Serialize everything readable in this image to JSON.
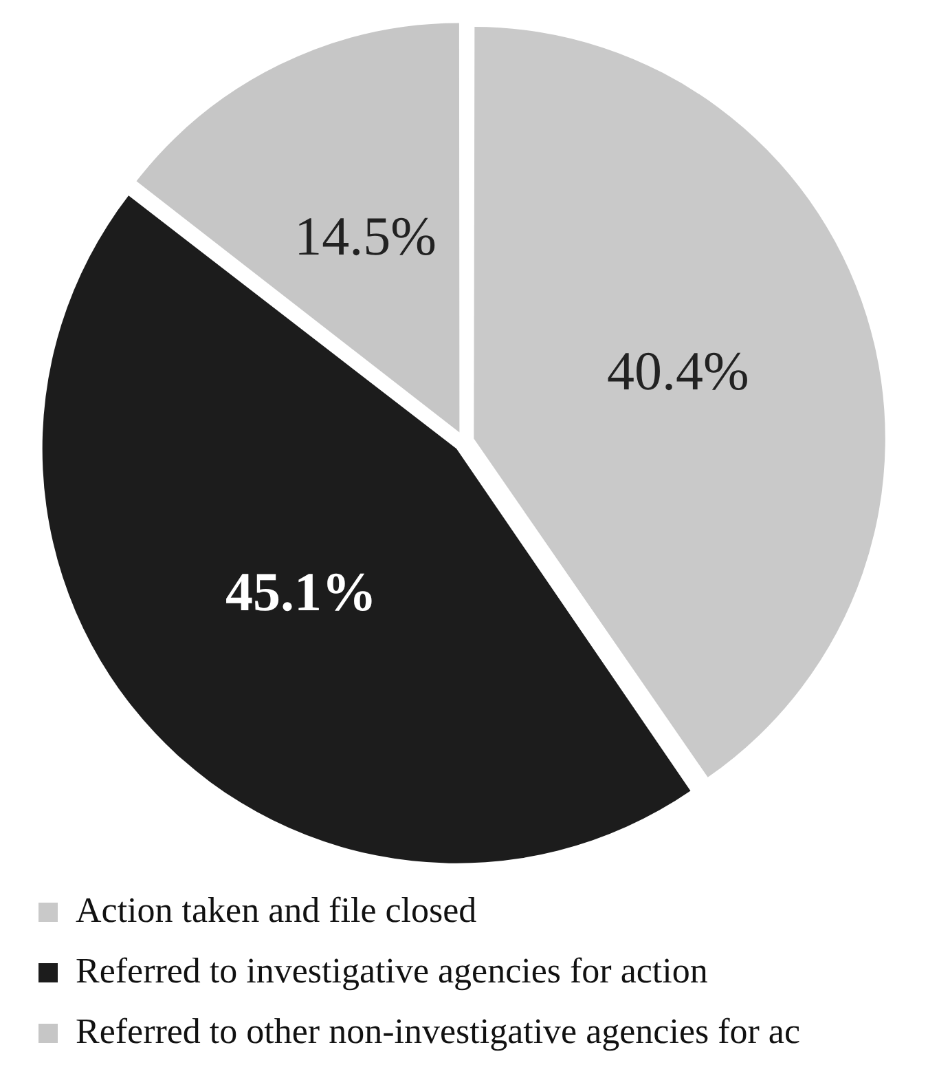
{
  "chart_data": {
    "type": "pie",
    "categories": [
      "Action taken and file closed",
      "Referred to investigative agencies for action",
      "Referred to other non-investigative agencies for ac"
    ],
    "values": [
      40.4,
      45.1,
      14.5
    ],
    "colors": [
      "#c9c9c9",
      "#1c1c1c",
      "#c6c6c6"
    ],
    "value_labels": [
      "40.4%",
      "45.1%",
      "14.5%"
    ],
    "legend": "bottom left"
  }
}
